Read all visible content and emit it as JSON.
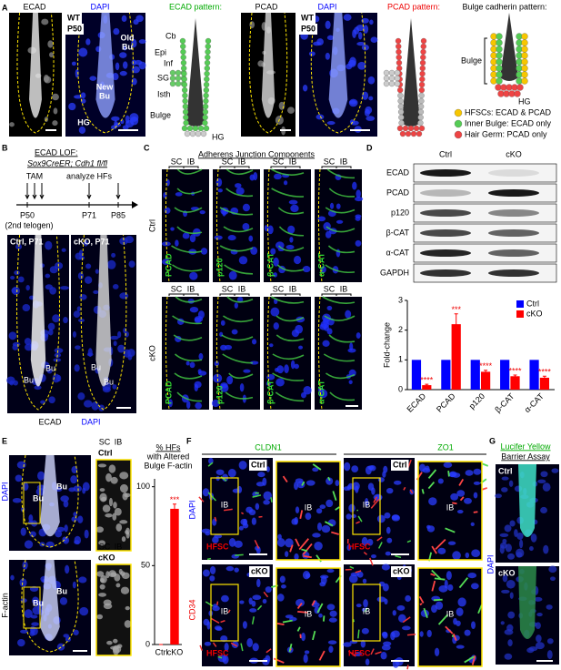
{
  "panel_labels": [
    "A",
    "B",
    "C",
    "D",
    "E",
    "F",
    "G"
  ],
  "A": {
    "channels": [
      "ECAD",
      "DAPI",
      "PCAD"
    ],
    "sample": [
      "WT",
      "P50"
    ],
    "image_labels": [
      "Old",
      "Bu",
      "New",
      "HG"
    ],
    "ecad_pattern": {
      "title": "ECAD pattern:",
      "labels": [
        "Cb",
        "Epi",
        "Inf",
        "SG",
        "Isth",
        "Bulge",
        "HG"
      ]
    },
    "pcad_pattern": {
      "title": "PCAD pattern:"
    },
    "bulge_pattern": {
      "title": "Bulge cadherin pattern:",
      "labels": [
        "Bulge",
        "HG"
      ],
      "legend": [
        "HFSCs: ECAD & PCAD",
        "Inner Bulge: ECAD only",
        "Hair Germ: PCAD only"
      ]
    }
  },
  "B": {
    "title": "ECAD LOF:",
    "genotype": "Sox9CreER; Cdh1 fl/fl",
    "timeline": [
      "TAM",
      "analyze HFs",
      "P50",
      "(2nd telogen)",
      "P71",
      "P85"
    ],
    "images": [
      "Ctrl, P71",
      "cKO, P71"
    ],
    "bulge": "Bu",
    "channels": [
      "ECAD",
      "DAPI"
    ]
  },
  "C": {
    "title": "Adherens Junction Components",
    "rows": [
      "Ctrl",
      "cKO"
    ],
    "stains": [
      "PCAD",
      "p120",
      "β-CAT",
      "α-CAT"
    ],
    "zones": [
      "SC",
      "IB"
    ]
  },
  "D": {
    "lanes": [
      "Ctrl",
      "cKO"
    ],
    "blots": [
      "ECAD",
      "PCAD",
      "p120",
      "β-CAT",
      "α-CAT",
      "GAPDH"
    ]
  },
  "E": {
    "conditions": [
      "Ctrl",
      "cKO"
    ],
    "channels": [
      "DAPI",
      "F-actin"
    ],
    "zones": [
      "SC",
      "IB"
    ],
    "bulge": "Bu"
  },
  "F": {
    "stains": [
      "CLDN1",
      "ZO1"
    ],
    "channels": [
      "DAPI",
      "CD34"
    ],
    "conditions": [
      "Ctrl",
      "cKO"
    ],
    "labels": [
      "IB",
      "HFSC"
    ]
  },
  "G": {
    "title": [
      "Lucifer Yellow",
      "Barrier Assay"
    ],
    "conditions": [
      "Ctrl",
      "cKO"
    ],
    "channel": "DAPI"
  },
  "chart_data": [
    {
      "type": "bar",
      "y_label": "Fold-change",
      "categories": [
        "ECAD",
        "PCAD",
        "p120",
        "β-CAT",
        "α-CAT"
      ],
      "series": [
        {
          "name": "Ctrl",
          "color": "#0000ff",
          "values": [
            1,
            1,
            1,
            1,
            1
          ]
        },
        {
          "name": "cKO",
          "color": "#ff0000",
          "values": [
            0.15,
            2.2,
            0.6,
            0.45,
            0.4
          ],
          "errors": [
            0.03,
            0.35,
            0.05,
            0.04,
            0.05
          ],
          "annotations": [
            "****",
            "***",
            "****",
            "****",
            "****"
          ]
        }
      ],
      "ylim": [
        0,
        3
      ],
      "yticks": [
        0,
        1,
        2,
        3
      ],
      "legend": "upper right"
    },
    {
      "type": "bar",
      "title": [
        "% HFs",
        "with Altered",
        "Bulge F-actin"
      ],
      "categories": [
        "Ctrl",
        "cKO"
      ],
      "values": [
        0,
        86
      ],
      "errors": [
        0,
        3
      ],
      "annotations": [
        null,
        "***"
      ],
      "color": "#ff0000",
      "ylim": [
        0,
        105
      ],
      "yticks": [
        0,
        50,
        100
      ]
    }
  ]
}
